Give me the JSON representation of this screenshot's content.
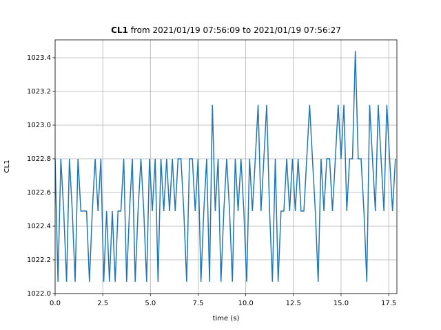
{
  "chart_data": {
    "type": "line",
    "title": {
      "bold": "CL1",
      "rest": "from 2021/01/19 07:56:09 to 2021/01/19 07:56:27"
    },
    "xlabel": "time (s)",
    "ylabel": "CL1",
    "color": "#1f77b4",
    "grid": true,
    "xlim": [
      0,
      17.93
    ],
    "ylim": [
      1022.0,
      1023.506
    ],
    "xticks": [
      {
        "value": 0,
        "label": "0.0"
      },
      2.5,
      {
        "value": 5,
        "label": "5.0"
      },
      7.5,
      {
        "value": 10,
        "label": "10.0"
      },
      12.5,
      {
        "value": 15,
        "label": "15.0"
      },
      17.5
    ],
    "yticks": [
      {
        "value": 1022,
        "label": "1022.0"
      },
      1022.2,
      1022.4,
      1022.6,
      1022.8,
      {
        "value": 1023,
        "label": "1023.0"
      },
      1023.2,
      1023.4
    ],
    "x": [
      0,
      0.15,
      0.3,
      0.45,
      0.6,
      0.75,
      0.9,
      1.05,
      1.2,
      1.35,
      1.5,
      1.65,
      1.8,
      1.95,
      2.1,
      2.25,
      2.4,
      2.55,
      2.7,
      2.85,
      3,
      3.15,
      3.3,
      3.45,
      3.6,
      3.75,
      3.9,
      4.05,
      4.2,
      4.35,
      4.5,
      4.65,
      4.8,
      4.95,
      5.1,
      5.25,
      5.4,
      5.55,
      5.7,
      5.85,
      6,
      6.15,
      6.3,
      6.45,
      6.6,
      6.75,
      6.9,
      7.05,
      7.2,
      7.35,
      7.5,
      7.65,
      7.8,
      7.95,
      8.1,
      8.25,
      8.4,
      8.55,
      8.7,
      8.85,
      9,
      9.15,
      9.3,
      9.45,
      9.6,
      9.75,
      9.9,
      10.05,
      10.2,
      10.35,
      10.5,
      10.65,
      10.8,
      10.95,
      11.1,
      11.25,
      11.4,
      11.55,
      11.7,
      11.85,
      12,
      12.15,
      12.3,
      12.45,
      12.6,
      12.75,
      12.9,
      13.05,
      13.2,
      13.35,
      13.5,
      13.65,
      13.8,
      13.95,
      14.1,
      14.25,
      14.4,
      14.55,
      14.7,
      14.85,
      15,
      15.15,
      15.3,
      15.45,
      15.6,
      15.75,
      15.9,
      16.05,
      16.2,
      16.35,
      16.5,
      16.65,
      16.8,
      16.95,
      17.1,
      17.25,
      17.4,
      17.55,
      17.7,
      17.85
    ],
    "values": [
      1022.8,
      1022.07,
      1022.8,
      1022.49,
      1022.07,
      1022.8,
      1022.49,
      1022.07,
      1022.8,
      1022.49,
      1022.49,
      1022.49,
      1022.07,
      1022.49,
      1022.8,
      1022.49,
      1022.8,
      1022.07,
      1022.49,
      1022.07,
      1022.49,
      1022.07,
      1022.49,
      1022.49,
      1022.8,
      1022.07,
      1022.49,
      1022.8,
      1022.07,
      1022.49,
      1022.8,
      1022.49,
      1022.07,
      1022.8,
      1022.49,
      1022.8,
      1022.07,
      1022.8,
      1022.49,
      1022.8,
      1022.49,
      1022.8,
      1022.49,
      1022.8,
      1022.8,
      1022.49,
      1022.07,
      1022.8,
      1022.8,
      1022.49,
      1022.8,
      1022.07,
      1022.49,
      1022.8,
      1022.07,
      1023.12,
      1022.49,
      1022.8,
      1022.07,
      1022.49,
      1022.8,
      1022.49,
      1022.07,
      1022.8,
      1022.49,
      1022.8,
      1022.49,
      1022.07,
      1022.8,
      1022.49,
      1022.8,
      1023.12,
      1022.49,
      1022.8,
      1023.12,
      1022.49,
      1022.07,
      1022.8,
      1022.07,
      1022.49,
      1022.49,
      1022.8,
      1022.49,
      1022.8,
      1022.49,
      1022.8,
      1022.49,
      1022.49,
      1022.8,
      1023.12,
      1022.8,
      1022.49,
      1022.07,
      1022.8,
      1022.49,
      1022.8,
      1022.8,
      1022.49,
      1022.8,
      1023.12,
      1022.8,
      1023.12,
      1022.49,
      1022.8,
      1022.8,
      1023.44,
      1022.8,
      1022.8,
      1022.49,
      1022.07,
      1023.12,
      1022.8,
      1022.49,
      1023.12,
      1022.8,
      1022.49,
      1023.12,
      1022.8,
      1022.49,
      1022.8
    ]
  }
}
